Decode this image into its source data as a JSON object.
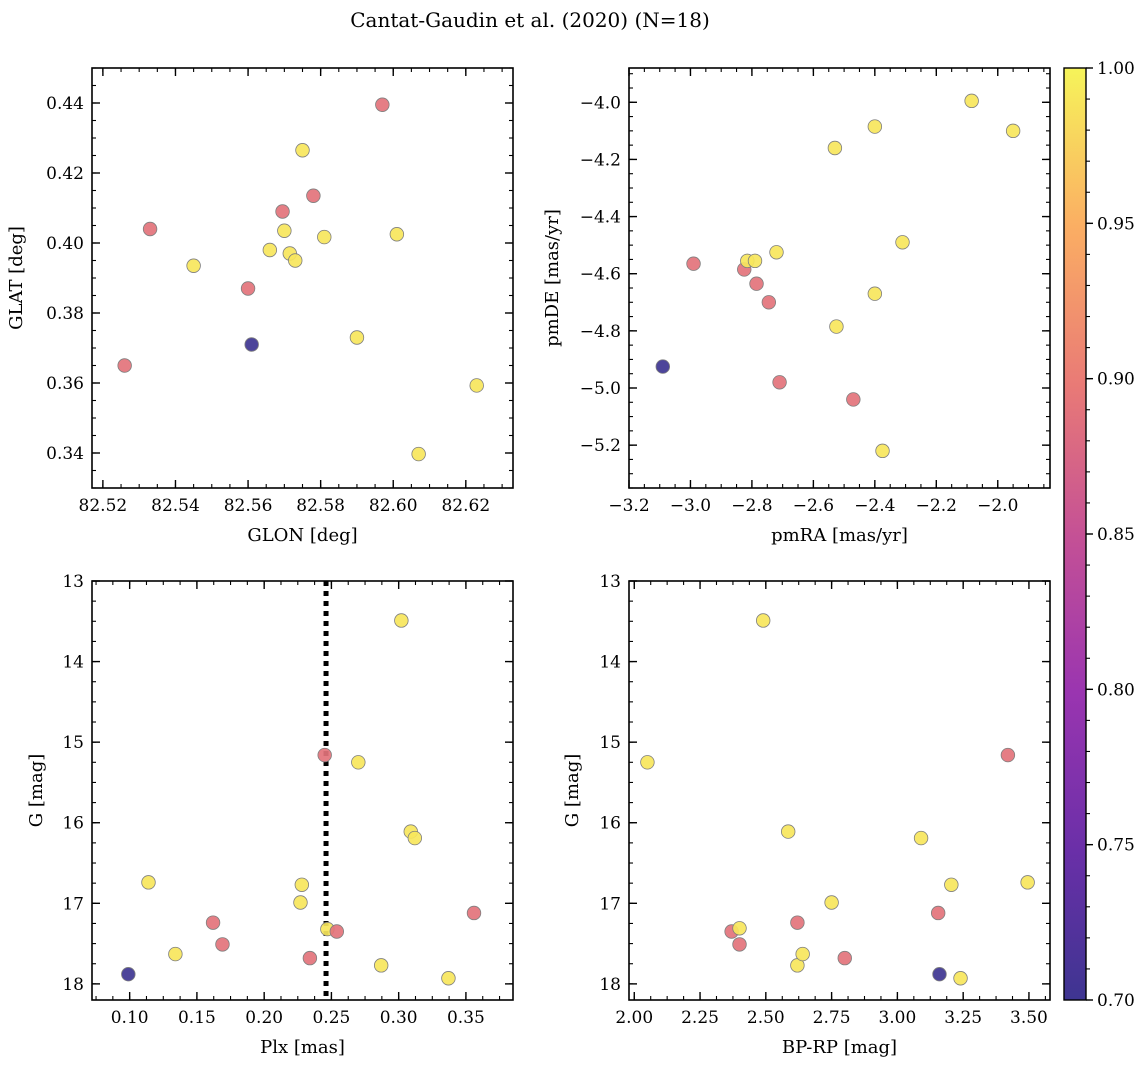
{
  "figure": {
    "suptitle": "Cantat-Gaudin et al. (2020) (N=18)"
  },
  "colors": {
    "low": "#3e3591",
    "mid": "#e98a74",
    "high": "#f6f45a",
    "vline": "#000000"
  },
  "chart_data": [
    {
      "type": "scatter",
      "id": "glon-glat",
      "xlabel": "GLON [deg]",
      "ylabel": "GLAT [deg]",
      "xlim": [
        82.517,
        82.633
      ],
      "ylim": [
        0.33,
        0.45
      ],
      "xticks": [
        82.52,
        82.54,
        82.56,
        82.58,
        82.6,
        82.62
      ],
      "xtick_labels": [
        "82.52",
        "82.54",
        "82.56",
        "82.58",
        "82.60",
        "82.62"
      ],
      "yticks": [
        0.34,
        0.36,
        0.38,
        0.4,
        0.42,
        0.44
      ],
      "ytick_labels": [
        "0.34",
        "0.36",
        "0.38",
        "0.40",
        "0.42",
        "0.44"
      ],
      "x": [
        82.526,
        82.533,
        82.545,
        82.56,
        82.561,
        82.566,
        82.57,
        82.5695,
        82.5715,
        82.573,
        82.575,
        82.578,
        82.581,
        82.59,
        82.597,
        82.601,
        82.607,
        82.623
      ],
      "y": [
        0.365,
        0.404,
        0.3935,
        0.387,
        0.371,
        0.398,
        0.4035,
        0.409,
        0.397,
        0.395,
        0.4265,
        0.4135,
        0.4017,
        0.373,
        0.4395,
        0.4025,
        0.3397,
        0.3593
      ],
      "c": [
        0.89,
        0.89,
        0.99,
        0.89,
        0.7,
        0.99,
        0.99,
        0.89,
        0.99,
        0.99,
        0.99,
        0.89,
        0.99,
        0.99,
        0.89,
        0.99,
        0.99,
        0.99
      ]
    },
    {
      "type": "scatter",
      "id": "pmra-pmde",
      "xlabel": "pmRA [mas/yr]",
      "ylabel": "pmDE [mas/yr]",
      "xlim": [
        -3.2,
        -1.83
      ],
      "ylim": [
        -5.35,
        -3.88
      ],
      "xticks": [
        -3.2,
        -3.0,
        -2.8,
        -2.6,
        -2.4,
        -2.2,
        -2.0
      ],
      "xtick_labels": [
        "−3.2",
        "−3.0",
        "−2.8",
        "−2.6",
        "−2.4",
        "−2.2",
        "−2.0"
      ],
      "yticks": [
        -5.2,
        -5.0,
        -4.8,
        -4.6,
        -4.4,
        -4.2,
        -4.0
      ],
      "ytick_labels": [
        "−5.2",
        "−5.0",
        "−4.8",
        "−4.6",
        "−4.4",
        "−4.2",
        "−4.0"
      ],
      "x": [
        -3.09,
        -2.99,
        -2.825,
        -2.815,
        -2.785,
        -2.79,
        -2.745,
        -2.72,
        -2.71,
        -2.53,
        -2.525,
        -2.47,
        -2.4,
        -2.4,
        -2.375,
        -2.31,
        -2.085,
        -1.95
      ],
      "y": [
        -4.925,
        -4.565,
        -4.585,
        -4.555,
        -4.635,
        -4.555,
        -4.7,
        -4.525,
        -4.98,
        -4.16,
        -4.785,
        -5.04,
        -4.085,
        -4.67,
        -5.22,
        -4.49,
        -3.995,
        -4.1
      ],
      "c": [
        0.7,
        0.89,
        0.89,
        0.99,
        0.89,
        0.99,
        0.89,
        0.99,
        0.89,
        0.99,
        0.99,
        0.89,
        0.99,
        0.99,
        0.99,
        0.99,
        0.99,
        0.99
      ]
    },
    {
      "type": "scatter",
      "id": "plx-g",
      "xlabel": "Plx [mas]",
      "ylabel": "G [mag]",
      "xlim": [
        0.072,
        0.385
      ],
      "ylim": [
        18.2,
        13.0
      ],
      "y_inverted": true,
      "vline": 0.246,
      "xticks": [
        0.1,
        0.15,
        0.2,
        0.25,
        0.3,
        0.35
      ],
      "xtick_labels": [
        "0.10",
        "0.15",
        "0.20",
        "0.25",
        "0.30",
        "0.35"
      ],
      "yticks": [
        13,
        14,
        15,
        16,
        17,
        18
      ],
      "ytick_labels": [
        "13",
        "14",
        "15",
        "16",
        "17",
        "18"
      ],
      "x": [
        0.099,
        0.114,
        0.134,
        0.162,
        0.169,
        0.227,
        0.228,
        0.234,
        0.245,
        0.247,
        0.254,
        0.27,
        0.287,
        0.302,
        0.309,
        0.312,
        0.337,
        0.356
      ],
      "y": [
        17.88,
        16.74,
        17.63,
        17.24,
        17.51,
        16.99,
        16.77,
        17.68,
        15.16,
        17.32,
        17.35,
        15.25,
        17.77,
        13.49,
        16.11,
        16.19,
        17.93,
        17.12
      ],
      "c": [
        0.7,
        0.99,
        0.99,
        0.89,
        0.89,
        0.99,
        0.99,
        0.89,
        0.89,
        0.99,
        0.89,
        0.99,
        0.99,
        0.99,
        0.99,
        0.99,
        0.99,
        0.89
      ]
    },
    {
      "type": "scatter",
      "id": "bprp-g",
      "xlabel": "BP-RP [mag]",
      "ylabel": "G [mag]",
      "xlim": [
        1.98,
        3.58
      ],
      "ylim": [
        18.2,
        13.0
      ],
      "y_inverted": true,
      "xticks": [
        2.0,
        2.25,
        2.5,
        2.75,
        3.0,
        3.25,
        3.5
      ],
      "xtick_labels": [
        "2.00",
        "2.25",
        "2.50",
        "2.75",
        "3.00",
        "3.25",
        "3.50"
      ],
      "yticks": [
        13,
        14,
        15,
        16,
        17,
        18
      ],
      "ytick_labels": [
        "13",
        "14",
        "15",
        "16",
        "17",
        "18"
      ],
      "x": [
        2.05,
        2.37,
        2.4,
        2.4,
        2.49,
        2.585,
        2.62,
        2.62,
        2.64,
        2.75,
        2.8,
        3.09,
        3.155,
        3.16,
        3.205,
        3.24,
        3.42,
        3.495
      ],
      "y": [
        15.25,
        17.35,
        17.31,
        17.51,
        13.49,
        16.11,
        17.24,
        17.77,
        17.63,
        16.99,
        17.68,
        16.19,
        17.12,
        17.88,
        16.77,
        17.93,
        15.16,
        16.74
      ],
      "c": [
        0.99,
        0.89,
        0.99,
        0.89,
        0.99,
        0.99,
        0.89,
        0.99,
        0.99,
        0.99,
        0.89,
        0.99,
        0.89,
        0.7,
        0.99,
        0.99,
        0.89,
        0.99
      ]
    }
  ],
  "colorbar": {
    "cmap": "plasma",
    "vmin": 0.7,
    "vmax": 1.0,
    "ticks": [
      0.7,
      0.75,
      0.8,
      0.85,
      0.9,
      0.95,
      1.0
    ],
    "tick_labels": [
      "0.70",
      "0.75",
      "0.80",
      "0.85",
      "0.90",
      "0.95",
      "1.00"
    ]
  }
}
